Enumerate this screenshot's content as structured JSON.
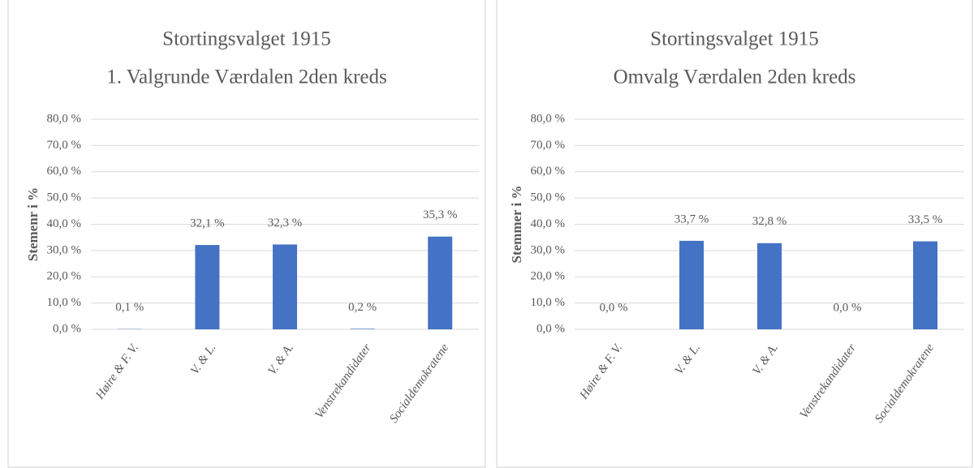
{
  "chart_data": [
    {
      "type": "bar",
      "title": "Stortingsvalget 1915",
      "subtitle": "1. Valgrunde Værdalen 2den kreds",
      "y_label": "Stemenr i %",
      "categories": [
        "Høire & F. V.",
        "V. & L.",
        "V. & A.",
        "Venstrekandidater",
        "Socialdemokratene"
      ],
      "values": [
        0.1,
        32.1,
        32.3,
        0.2,
        35.3
      ],
      "value_labels": [
        "0,1 %",
        "32,1 %",
        "32,3 %",
        "0,2 %",
        "35,3 %"
      ],
      "color": "#4472c4",
      "ylim": [
        0,
        80
      ],
      "yticks": [
        {
          "value": 0,
          "label": "0,0 %"
        },
        {
          "value": 10,
          "label": "10,0 %"
        },
        {
          "value": 20,
          "label": "20,0 %"
        },
        {
          "value": 30,
          "label": "30,0 %"
        },
        {
          "value": 40,
          "label": "40,0 %"
        },
        {
          "value": 50,
          "label": "50,0 %"
        },
        {
          "value": 60,
          "label": "60,0 %"
        },
        {
          "value": 70,
          "label": "70,0 %"
        },
        {
          "value": 80,
          "label": "80,0 %"
        }
      ],
      "grid": true
    },
    {
      "type": "bar",
      "title": "Stortingsvalget 1915",
      "subtitle": "Omvalg Værdalen 2den kreds",
      "y_label": "Stemmer i %",
      "categories": [
        "Høire & F. V.",
        "V. & L.",
        "V. & A.",
        "Venstrekandidater",
        "Socialdemokratene"
      ],
      "values": [
        0.0,
        33.7,
        32.8,
        0.0,
        33.5
      ],
      "value_labels": [
        "0,0 %",
        "33,7 %",
        "32,8 %",
        "0,0 %",
        "33,5 %"
      ],
      "color": "#4472c4",
      "ylim": [
        0,
        80
      ],
      "yticks": [
        {
          "value": 0,
          "label": "0,0 %"
        },
        {
          "value": 10,
          "label": "10,0 %"
        },
        {
          "value": 20,
          "label": "20,0 %"
        },
        {
          "value": 30,
          "label": "30,0 %"
        },
        {
          "value": 40,
          "label": "40,0 %"
        },
        {
          "value": 50,
          "label": "50,0 %"
        },
        {
          "value": 60,
          "label": "60,0 %"
        },
        {
          "value": 70,
          "label": "70,0 %"
        },
        {
          "value": 80,
          "label": "80,0 %"
        }
      ],
      "grid": true
    }
  ]
}
